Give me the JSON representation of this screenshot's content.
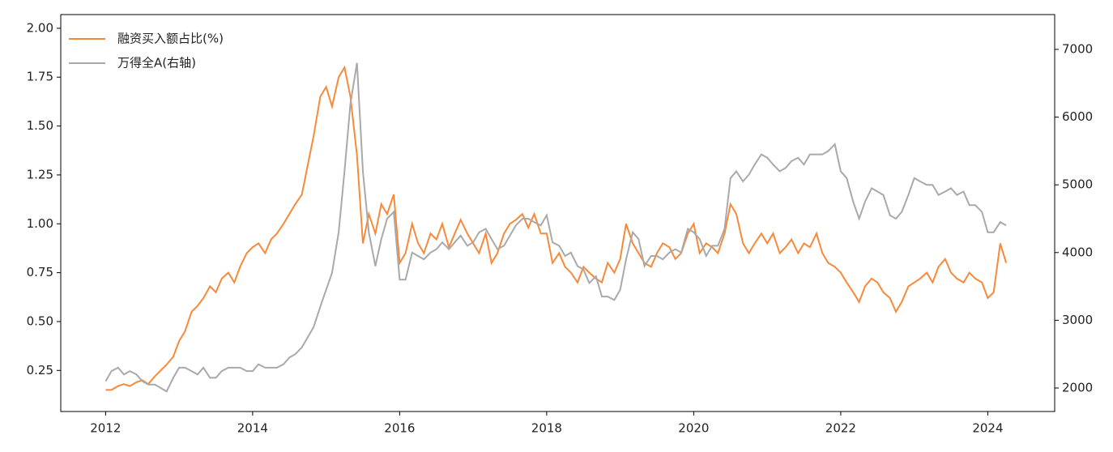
{
  "chart_data": {
    "type": "line",
    "x": [
      2012.0,
      2012.08,
      2012.17,
      2012.25,
      2012.33,
      2012.42,
      2012.5,
      2012.58,
      2012.67,
      2012.75,
      2012.83,
      2012.92,
      2013.0,
      2013.08,
      2013.17,
      2013.25,
      2013.33,
      2013.42,
      2013.5,
      2013.58,
      2013.67,
      2013.75,
      2013.83,
      2013.92,
      2014.0,
      2014.08,
      2014.17,
      2014.25,
      2014.33,
      2014.42,
      2014.5,
      2014.58,
      2014.67,
      2014.75,
      2014.83,
      2014.92,
      2015.0,
      2015.08,
      2015.17,
      2015.25,
      2015.33,
      2015.42,
      2015.5,
      2015.58,
      2015.67,
      2015.75,
      2015.83,
      2015.92,
      2016.0,
      2016.08,
      2016.17,
      2016.25,
      2016.33,
      2016.42,
      2016.5,
      2016.58,
      2016.67,
      2016.75,
      2016.83,
      2016.92,
      2017.0,
      2017.08,
      2017.17,
      2017.25,
      2017.33,
      2017.42,
      2017.5,
      2017.58,
      2017.67,
      2017.75,
      2017.83,
      2017.92,
      2018.0,
      2018.08,
      2018.17,
      2018.25,
      2018.33,
      2018.42,
      2018.5,
      2018.58,
      2018.67,
      2018.75,
      2018.83,
      2018.92,
      2019.0,
      2019.08,
      2019.17,
      2019.25,
      2019.33,
      2019.42,
      2019.5,
      2019.58,
      2019.67,
      2019.75,
      2019.83,
      2019.92,
      2020.0,
      2020.08,
      2020.17,
      2020.25,
      2020.33,
      2020.42,
      2020.5,
      2020.58,
      2020.67,
      2020.75,
      2020.83,
      2020.92,
      2021.0,
      2021.08,
      2021.17,
      2021.25,
      2021.33,
      2021.42,
      2021.5,
      2021.58,
      2021.67,
      2021.75,
      2021.83,
      2021.92,
      2022.0,
      2022.08,
      2022.17,
      2022.25,
      2022.33,
      2022.42,
      2022.5,
      2022.58,
      2022.67,
      2022.75,
      2022.83,
      2022.92,
      2023.0,
      2023.08,
      2023.17,
      2023.25,
      2023.33,
      2023.42,
      2023.5,
      2023.58,
      2023.67,
      2023.75,
      2023.83,
      2023.92,
      2024.0,
      2024.08,
      2024.17,
      2024.25
    ],
    "series": [
      {
        "name": "融资买入额占比(%)",
        "color": "#f78a3a",
        "values": [
          0.15,
          0.15,
          0.17,
          0.18,
          0.17,
          0.19,
          0.2,
          0.18,
          0.22,
          0.25,
          0.28,
          0.32,
          0.4,
          0.45,
          0.55,
          0.58,
          0.62,
          0.68,
          0.65,
          0.72,
          0.75,
          0.7,
          0.78,
          0.85,
          0.88,
          0.9,
          0.85,
          0.92,
          0.95,
          1.0,
          1.05,
          1.1,
          1.15,
          1.3,
          1.45,
          1.65,
          1.7,
          1.6,
          1.75,
          1.8,
          1.65,
          1.35,
          0.9,
          1.05,
          0.95,
          1.1,
          1.05,
          1.15,
          0.8,
          0.85,
          1.0,
          0.9,
          0.85,
          0.95,
          0.92,
          1.0,
          0.88,
          0.95,
          1.02,
          0.95,
          0.9,
          0.85,
          0.95,
          0.8,
          0.85,
          0.95,
          1.0,
          1.02,
          1.05,
          0.98,
          1.05,
          0.95,
          0.95,
          0.8,
          0.85,
          0.78,
          0.75,
          0.7,
          0.78,
          0.75,
          0.72,
          0.7,
          0.8,
          0.75,
          0.82,
          1.0,
          0.9,
          0.85,
          0.8,
          0.78,
          0.85,
          0.9,
          0.88,
          0.82,
          0.85,
          0.95,
          1.0,
          0.85,
          0.9,
          0.88,
          0.85,
          0.95,
          1.1,
          1.05,
          0.9,
          0.85,
          0.9,
          0.95,
          0.9,
          0.95,
          0.85,
          0.88,
          0.92,
          0.85,
          0.9,
          0.88,
          0.95,
          0.85,
          0.8,
          0.78,
          0.75,
          0.7,
          0.65,
          0.6,
          0.68,
          0.72,
          0.7,
          0.65,
          0.62,
          0.55,
          0.6,
          0.68,
          0.7,
          0.72,
          0.75,
          0.7,
          0.78,
          0.82,
          0.75,
          0.72,
          0.7,
          0.75,
          0.72,
          0.7,
          0.62,
          0.65,
          0.9,
          0.8
        ]
      },
      {
        "name": "万得全A(右轴)",
        "color": "#a9a9a9",
        "axis": "y2",
        "values": [
          2100,
          2250,
          2300,
          2200,
          2250,
          2200,
          2100,
          2050,
          2050,
          2000,
          1950,
          2150,
          2300,
          2300,
          2250,
          2200,
          2300,
          2150,
          2150,
          2250,
          2300,
          2300,
          2300,
          2250,
          2250,
          2350,
          2300,
          2300,
          2300,
          2350,
          2450,
          2500,
          2600,
          2750,
          2900,
          3200,
          3450,
          3700,
          4300,
          5200,
          6200,
          6800,
          5200,
          4300,
          3800,
          4200,
          4500,
          4600,
          3600,
          3600,
          4000,
          3950,
          3900,
          4000,
          4050,
          4150,
          4050,
          4150,
          4250,
          4100,
          4150,
          4300,
          4350,
          4200,
          4050,
          4100,
          4250,
          4400,
          4500,
          4500,
          4450,
          4400,
          4550,
          4150,
          4100,
          3950,
          4000,
          3800,
          3750,
          3550,
          3650,
          3350,
          3350,
          3300,
          3450,
          3900,
          4300,
          4200,
          3800,
          3950,
          3950,
          3900,
          4000,
          4050,
          4000,
          4350,
          4300,
          4200,
          3950,
          4100,
          4100,
          4350,
          5100,
          5200,
          5050,
          5150,
          5300,
          5450,
          5400,
          5300,
          5200,
          5250,
          5350,
          5400,
          5300,
          5450,
          5450,
          5450,
          5500,
          5600,
          5200,
          5100,
          4750,
          4500,
          4750,
          4950,
          4900,
          4850,
          4550,
          4500,
          4600,
          4850,
          5100,
          5050,
          5000,
          5000,
          4850,
          4900,
          4950,
          4850,
          4900,
          4700,
          4700,
          4600,
          4300,
          4300,
          4450,
          4400
        ]
      }
    ],
    "xlim": [
      2011.39,
      2024.91
    ],
    "xticks": [
      2012,
      2014,
      2016,
      2018,
      2020,
      2022,
      2024
    ],
    "ylim": [
      0.04,
      2.07
    ],
    "yticks": [
      {
        "value": 0.25,
        "label": "0.25"
      },
      {
        "value": 0.5,
        "label": "0.50"
      },
      {
        "value": 0.75,
        "label": "0.75"
      },
      {
        "value": 1.0,
        "label": "1.00"
      },
      {
        "value": 1.25,
        "label": "1.25"
      },
      {
        "value": 1.5,
        "label": "1.50"
      },
      {
        "value": 1.75,
        "label": "1.75"
      },
      {
        "value": 2.0,
        "label": "2.00"
      }
    ],
    "y2lim": [
      1653,
      7514
    ],
    "y2ticks": [
      2000,
      3000,
      4000,
      5000,
      6000,
      7000
    ],
    "legend": "upper-left"
  }
}
